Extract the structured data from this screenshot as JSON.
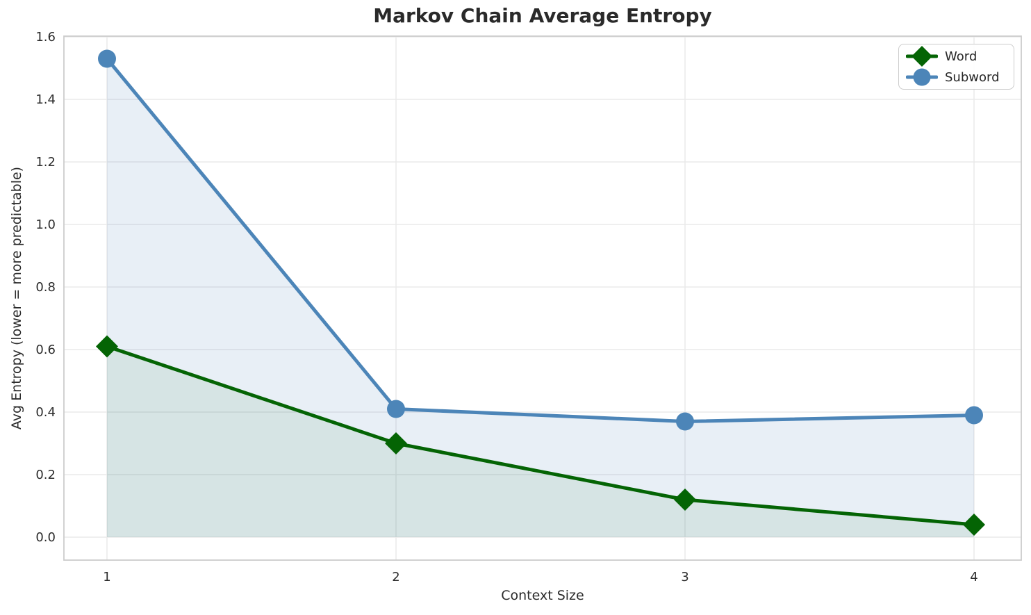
{
  "figure": {
    "background": "#ffffff",
    "grid_color": "#eaeaea",
    "spine_color": "#cccccc",
    "text_color": "#2b2b2b",
    "title_color": "#2a2a2a"
  },
  "chart_data": {
    "type": "line",
    "title": "Markov Chain Average Entropy",
    "xlabel": "Context Size",
    "ylabel": "Avg Entropy (lower = more predictable)",
    "x": [
      1,
      2,
      3,
      4
    ],
    "series": [
      {
        "name": "Word",
        "marker": "diamond",
        "color": "#046404",
        "fill": "rgba(4,100,4,0.08)",
        "values": [
          0.61,
          0.3,
          0.12,
          0.04
        ]
      },
      {
        "name": "Subword",
        "marker": "circle",
        "color": "#4c85b8",
        "fill": "rgba(76,133,184,0.13)",
        "values": [
          1.53,
          0.41,
          0.37,
          0.39
        ]
      }
    ],
    "fill_to_zero": true,
    "xticks": [
      1,
      2,
      3,
      4
    ],
    "yticks": [
      0.0,
      0.2,
      0.4,
      0.6,
      0.8,
      1.0,
      1.2,
      1.4,
      1.6
    ],
    "xlim": [
      0.85,
      4.16
    ],
    "ylim": [
      -0.07,
      1.6
    ],
    "grid": true,
    "legend_position": "upper right"
  }
}
